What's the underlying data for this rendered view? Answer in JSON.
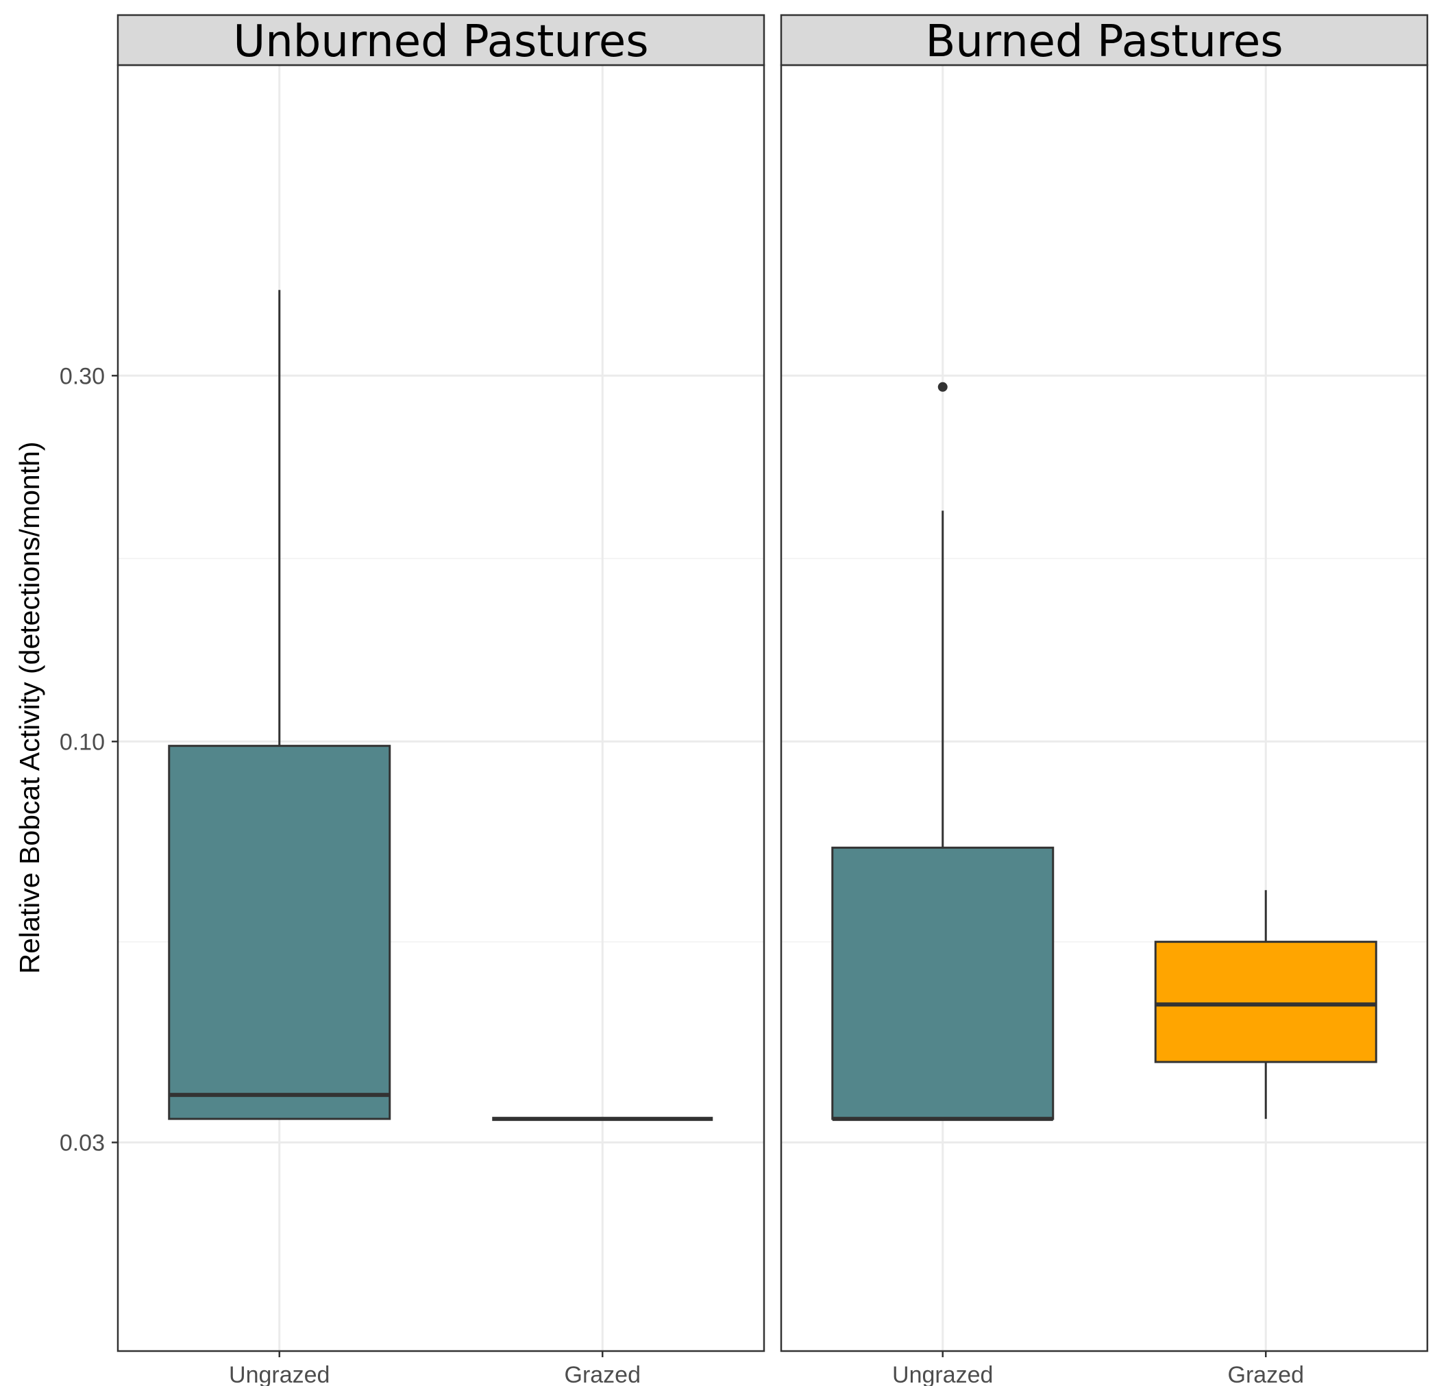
{
  "chart_data": {
    "type": "boxplot",
    "ylabel": "Relative Bobcat Activity (detections/month)",
    "xlabel": "",
    "y_scale": "log10",
    "ylim": [
      0.0295,
      0.415
    ],
    "y_ticks": [
      {
        "value": 0.03,
        "label": "0.03"
      },
      {
        "value": 0.1,
        "label": "0.10"
      },
      {
        "value": 0.3,
        "label": "0.30"
      }
    ],
    "y_minor_gridlines": [
      0.0548,
      0.1732
    ],
    "categories": [
      "Ungrazed",
      "Grazed"
    ],
    "colors": {
      "Ungrazed": "#53868b",
      "Grazed": "#ffa500"
    },
    "panels": [
      {
        "title": "Unburned Pastures",
        "boxes": [
          {
            "category": "Ungrazed",
            "lower": 0.0322,
            "q1": 0.0322,
            "median": 0.0346,
            "q3": 0.0987,
            "upper": 0.388,
            "outliers": []
          },
          {
            "category": "Grazed",
            "lower": 0.0322,
            "q1": 0.0322,
            "median": 0.0322,
            "q3": 0.0322,
            "upper": 0.0322,
            "outliers": []
          }
        ]
      },
      {
        "title": "Burned Pastures",
        "boxes": [
          {
            "category": "Ungrazed",
            "lower": 0.0322,
            "q1": 0.0322,
            "median": 0.0322,
            "q3": 0.0727,
            "upper": 0.2,
            "outliers": [
              0.29
            ]
          },
          {
            "category": "Grazed",
            "lower": 0.0322,
            "q1": 0.0382,
            "median": 0.0454,
            "q3": 0.0548,
            "upper": 0.064,
            "outliers": []
          }
        ]
      }
    ]
  }
}
